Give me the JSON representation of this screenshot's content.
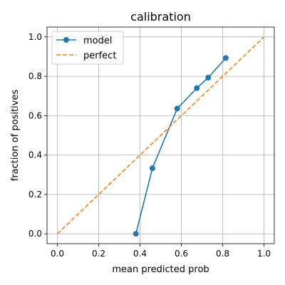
{
  "chart_data": {
    "type": "line",
    "title": "calibration",
    "xlabel": "mean predicted prob",
    "ylabel": "fraction of positives",
    "xlim": [
      -0.05,
      1.05
    ],
    "ylim": [
      -0.05,
      1.05
    ],
    "xticks": [
      0.0,
      0.2,
      0.4,
      0.6,
      0.8,
      1.0
    ],
    "yticks": [
      0.0,
      0.2,
      0.4,
      0.6,
      0.8,
      1.0
    ],
    "xtick_labels": [
      "0.0",
      "0.2",
      "0.4",
      "0.6",
      "0.8",
      "1.0"
    ],
    "ytick_labels": [
      "0.0",
      "0.2",
      "0.4",
      "0.6",
      "0.8",
      "1.0"
    ],
    "grid": true,
    "legend_position": "top-left",
    "series": [
      {
        "name": "model",
        "style": "solid-with-markers",
        "color": "#1f77b4",
        "x": [
          0.38,
          0.46,
          0.58,
          0.675,
          0.73,
          0.815
        ],
        "y": [
          0.0,
          0.333,
          0.636,
          0.74,
          0.793,
          0.893
        ]
      },
      {
        "name": "perfect",
        "style": "dashed",
        "color": "#ff7f0e",
        "x": [
          0.0,
          1.0
        ],
        "y": [
          0.0,
          1.0
        ]
      }
    ]
  }
}
